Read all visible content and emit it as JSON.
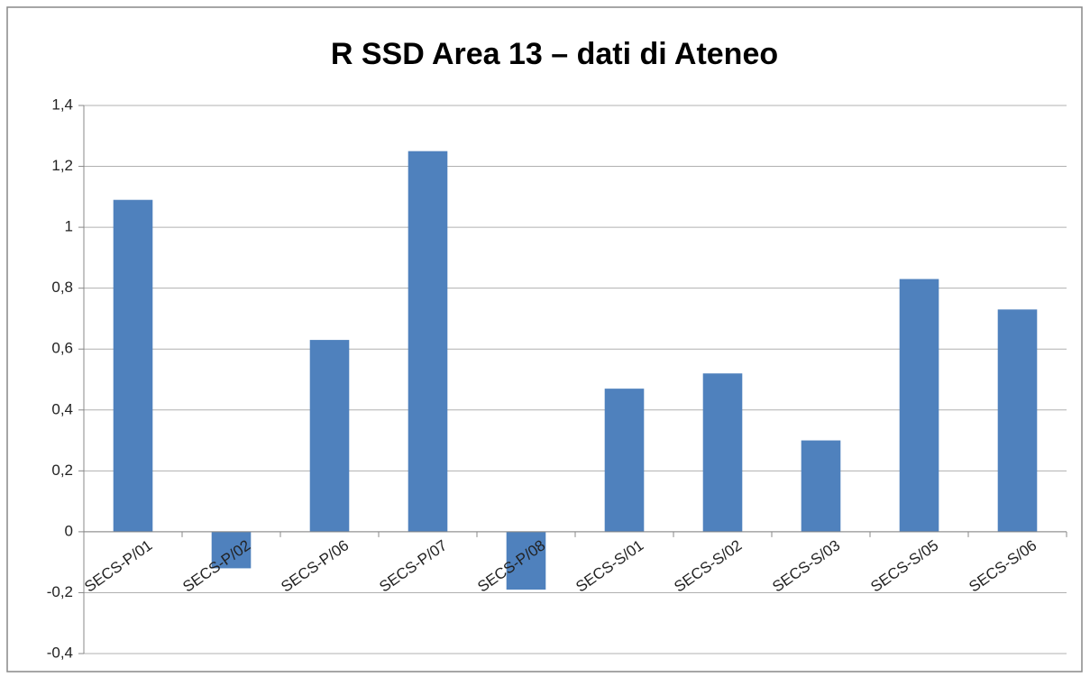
{
  "chart_data": {
    "type": "bar",
    "title": "R SSD  Area  13 – dati di Ateneo",
    "categories": [
      "SECS-P/01",
      "SECS-P/02",
      "SECS-P/06",
      "SECS-P/07",
      "SECS-P/08",
      "SECS-S/01",
      "SECS-S/02",
      "SECS-S/03",
      "SECS-S/05",
      "SECS-S/06"
    ],
    "values": [
      1.09,
      -0.12,
      0.63,
      1.25,
      -0.19,
      0.47,
      0.52,
      0.3,
      0.83,
      0.73
    ],
    "color": "#4f81bd",
    "ylim": [
      -0.4,
      1.4
    ],
    "yticks": [
      {
        "value": -0.4,
        "label": "-0,4"
      },
      {
        "value": -0.2,
        "label": "-0,2"
      },
      0,
      {
        "value": 0.2,
        "label": "0,2"
      },
      {
        "value": 0.4,
        "label": "0,4"
      },
      {
        "value": 0.6,
        "label": "0,6"
      },
      {
        "value": 0.8,
        "label": "0,8"
      },
      1,
      {
        "value": 1.2,
        "label": "1,2"
      },
      {
        "value": 1.4,
        "label": "1,4"
      }
    ],
    "grid": true
  }
}
